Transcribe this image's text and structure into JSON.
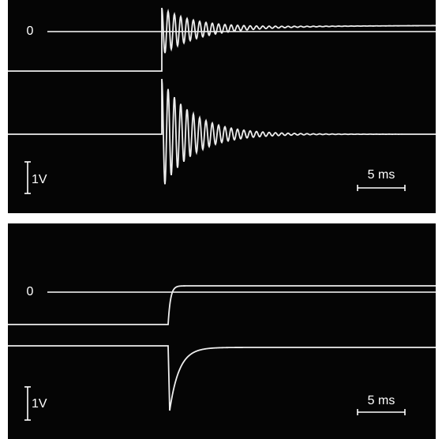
{
  "panels": [
    {
      "zero_label": "0",
      "voltage_scale": "1V",
      "time_scale": "5 ms"
    },
    {
      "zero_label": "0",
      "voltage_scale": "1V",
      "time_scale": "5 ms"
    }
  ]
}
